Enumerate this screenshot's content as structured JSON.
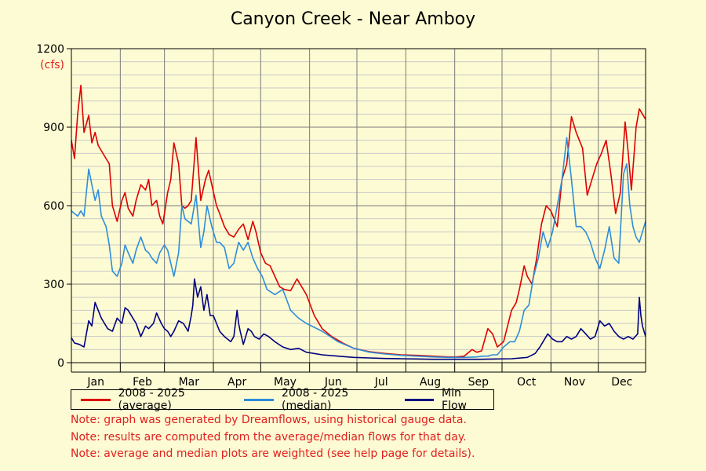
{
  "title": "Canyon Creek - Near Amboy",
  "chart_data": {
    "type": "line",
    "title": "Canyon Creek - Near Amboy",
    "y_unit_label": "(cfs)",
    "ylim": [
      0,
      1200
    ],
    "y_ticks": [
      0,
      300,
      600,
      900,
      1200
    ],
    "x_unit": "day of year",
    "xlim": [
      1,
      365
    ],
    "month_labels": [
      "Jan",
      "Feb",
      "Mar",
      "Apr",
      "May",
      "Jun",
      "Jul",
      "Aug",
      "Sep",
      "Oct",
      "Nov",
      "Dec"
    ],
    "grid": true,
    "series": [
      {
        "name": "2008 - 2025 (average)",
        "color": "#dd0000",
        "x": [
          1,
          3,
          5,
          7,
          9,
          12,
          14,
          16,
          18,
          20,
          23,
          25,
          27,
          30,
          33,
          35,
          37,
          40,
          42,
          45,
          48,
          50,
          52,
          55,
          57,
          59,
          62,
          64,
          66,
          69,
          71,
          73,
          75,
          77,
          80,
          83,
          86,
          88,
          90,
          93,
          95,
          98,
          101,
          104,
          107,
          110,
          113,
          116,
          118,
          121,
          124,
          127,
          130,
          133,
          136,
          140,
          144,
          150,
          155,
          160,
          166,
          173,
          180,
          190,
          200,
          210,
          220,
          230,
          240,
          245,
          250,
          255,
          258,
          261,
          265,
          268,
          271,
          275,
          280,
          283,
          285,
          288,
          290,
          293,
          296,
          299,
          302,
          305,
          309,
          312,
          315,
          318,
          321,
          325,
          328,
          331,
          334,
          337,
          340,
          343,
          346,
          349,
          352,
          354,
          356,
          359,
          361,
          363,
          365
        ],
        "values": [
          850,
          780,
          950,
          1060,
          880,
          945,
          840,
          880,
          830,
          810,
          780,
          760,
          600,
          540,
          620,
          650,
          590,
          560,
          620,
          680,
          660,
          700,
          600,
          620,
          560,
          530,
          650,
          700,
          840,
          760,
          600,
          590,
          600,
          620,
          860,
          620,
          700,
          735,
          680,
          600,
          570,
          520,
          490,
          480,
          510,
          530,
          470,
          540,
          500,
          420,
          380,
          370,
          330,
          290,
          280,
          275,
          320,
          260,
          180,
          130,
          100,
          75,
          55,
          42,
          35,
          30,
          28,
          25,
          22,
          22,
          25,
          50,
          40,
          45,
          130,
          110,
          60,
          80,
          200,
          230,
          280,
          370,
          330,
          300,
          400,
          530,
          600,
          580,
          520,
          700,
          760,
          940,
          880,
          820,
          640,
          700,
          760,
          800,
          850,
          720,
          570,
          650,
          920,
          800,
          660,
          900,
          970,
          950,
          930
        ]
      },
      {
        "name": "2008 - 2025 (median)",
        "color": "#2e8ddb",
        "x": [
          1,
          3,
          5,
          7,
          9,
          12,
          14,
          16,
          18,
          20,
          23,
          25,
          27,
          30,
          33,
          35,
          37,
          40,
          42,
          45,
          48,
          50,
          52,
          55,
          57,
          60,
          62,
          64,
          66,
          69,
          71,
          73,
          75,
          77,
          80,
          83,
          85,
          87,
          90,
          93,
          95,
          98,
          101,
          104,
          107,
          110,
          113,
          116,
          119,
          122,
          125,
          130,
          135,
          140,
          145,
          150,
          160,
          170,
          180,
          190,
          200,
          210,
          220,
          230,
          240,
          250,
          258,
          262,
          265,
          268,
          271,
          275,
          279,
          282,
          285,
          288,
          291,
          294,
          297,
          300,
          303,
          306,
          309,
          312,
          315,
          318,
          321,
          324,
          327,
          330,
          333,
          336,
          339,
          342,
          345,
          348,
          351,
          353,
          355,
          357,
          359,
          361,
          363,
          365
        ],
        "values": [
          580,
          570,
          560,
          580,
          560,
          740,
          680,
          620,
          660,
          560,
          520,
          450,
          350,
          330,
          380,
          450,
          420,
          380,
          430,
          480,
          430,
          420,
          400,
          380,
          420,
          450,
          430,
          380,
          330,
          420,
          600,
          550,
          540,
          530,
          640,
          440,
          500,
          600,
          520,
          460,
          460,
          440,
          360,
          380,
          460,
          430,
          460,
          400,
          360,
          330,
          280,
          260,
          280,
          200,
          170,
          150,
          120,
          80,
          55,
          40,
          33,
          28,
          25,
          22,
          20,
          20,
          22,
          25,
          25,
          30,
          30,
          60,
          80,
          80,
          120,
          200,
          220,
          330,
          400,
          500,
          440,
          500,
          600,
          700,
          860,
          700,
          520,
          520,
          500,
          460,
          400,
          360,
          430,
          520,
          400,
          380,
          720,
          760,
          600,
          520,
          480,
          460,
          500,
          540
        ]
      },
      {
        "name": "Min Flow",
        "color": "#000080",
        "x": [
          1,
          3,
          6,
          9,
          12,
          14,
          16,
          18,
          20,
          22,
          24,
          27,
          30,
          33,
          35,
          37,
          40,
          42,
          45,
          48,
          50,
          53,
          55,
          58,
          60,
          62,
          64,
          66,
          69,
          72,
          75,
          77,
          78,
          79,
          81,
          83,
          85,
          87,
          89,
          91,
          93,
          95,
          98,
          100,
          102,
          104,
          106,
          107,
          108,
          110,
          113,
          115,
          117,
          120,
          123,
          126,
          130,
          135,
          140,
          145,
          150,
          160,
          170,
          180,
          190,
          200,
          210,
          220,
          230,
          240,
          250,
          260,
          270,
          280,
          290,
          295,
          298,
          300,
          303,
          306,
          309,
          312,
          315,
          318,
          321,
          324,
          327,
          330,
          333,
          336,
          339,
          342,
          345,
          348,
          351,
          354,
          357,
          360,
          361,
          362,
          363,
          365
        ],
        "values": [
          95,
          75,
          70,
          60,
          160,
          140,
          230,
          200,
          170,
          150,
          130,
          120,
          170,
          150,
          210,
          200,
          170,
          150,
          100,
          140,
          130,
          150,
          190,
          150,
          130,
          120,
          100,
          120,
          160,
          150,
          120,
          180,
          220,
          320,
          250,
          290,
          200,
          260,
          180,
          180,
          150,
          120,
          100,
          90,
          80,
          100,
          200,
          150,
          120,
          70,
          130,
          120,
          100,
          90,
          110,
          100,
          80,
          60,
          50,
          55,
          40,
          30,
          25,
          20,
          18,
          16,
          15,
          14,
          13,
          13,
          13,
          13,
          14,
          15,
          20,
          35,
          60,
          80,
          110,
          90,
          80,
          80,
          100,
          90,
          100,
          130,
          110,
          90,
          100,
          160,
          140,
          150,
          120,
          100,
          90,
          100,
          90,
          110,
          250,
          180,
          140,
          100
        ]
      }
    ]
  },
  "notes": [
    "Note: graph was generated by Dreamflows, using historical gauge data.",
    "Note: results are computed from the average/median flows for that day.",
    "Note: average and median plots are weighted (see help page for details)."
  ]
}
